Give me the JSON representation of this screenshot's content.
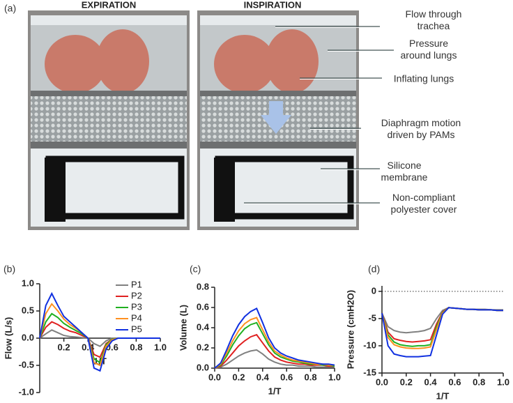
{
  "panel_a": {
    "panel_label": "(a)",
    "left_title": "EXPIRATION",
    "right_title": "INSPIRATION",
    "callouts": [
      {
        "lines": [
          "Flow through",
          "trachea"
        ]
      },
      {
        "lines": [
          "Pressure",
          "around lungs"
        ]
      },
      {
        "lines": [
          "Inflating lungs"
        ]
      },
      {
        "lines": [
          "Diaphragm motion",
          "driven by PAMs"
        ]
      },
      {
        "lines": [
          "Silicone",
          "membrane"
        ]
      },
      {
        "lines": [
          "Non-compliant",
          "polyester cover"
        ]
      }
    ]
  },
  "chart_data": [
    {
      "type": "line",
      "panel_label": "(b)",
      "y_label": "Flow (L/s)",
      "x_label": "1/T",
      "x": [
        0,
        0.05,
        0.1,
        0.15,
        0.2,
        0.25,
        0.3,
        0.35,
        0.4,
        0.45,
        0.5,
        0.55,
        0.6,
        0.65,
        0.7,
        0.75,
        0.8,
        0.85,
        0.9,
        0.95,
        1
      ],
      "xlim": [
        0,
        1
      ],
      "xticks": [
        0.2,
        0.4,
        0.6,
        0.8,
        {
          "value": 1,
          "label": "1.0"
        }
      ],
      "ylim": [
        -1,
        1
      ],
      "yticks": [
        {
          "value": -1,
          "label": "-1.0"
        },
        -0.5,
        {
          "value": 0,
          "label": "0.0"
        },
        0.5,
        {
          "value": 1,
          "label": "1.0"
        }
      ],
      "x_axis_cross": 0,
      "legend": "upper right",
      "series": [
        {
          "name": "P1",
          "color": "#808080",
          "values": [
            0,
            0.08,
            0.15,
            0.1,
            0.05,
            0.03,
            0.02,
            0.01,
            0,
            -0.1,
            -0.15,
            -0.05,
            0,
            0,
            0,
            0,
            0,
            0,
            0,
            0,
            0
          ]
        },
        {
          "name": "P2",
          "color": "#e02020",
          "values": [
            0,
            0.2,
            0.3,
            0.25,
            0.18,
            0.13,
            0.1,
            0.05,
            0,
            -0.3,
            -0.35,
            -0.1,
            -0.02,
            0,
            0,
            0,
            0,
            0,
            0,
            0,
            0
          ]
        },
        {
          "name": "P3",
          "color": "#20b020",
          "values": [
            0,
            0.3,
            0.45,
            0.38,
            0.27,
            0.2,
            0.14,
            0.08,
            0,
            -0.38,
            -0.45,
            -0.12,
            -0.02,
            0,
            0,
            0,
            0,
            0,
            0,
            0,
            0
          ]
        },
        {
          "name": "P4",
          "color": "#ff9020",
          "values": [
            0,
            0.45,
            0.63,
            0.5,
            0.35,
            0.25,
            0.18,
            0.1,
            0,
            -0.45,
            -0.5,
            -0.15,
            -0.03,
            0,
            0,
            0,
            0,
            0,
            0,
            0,
            0
          ]
        },
        {
          "name": "P5",
          "color": "#1030e0",
          "values": [
            0,
            0.6,
            0.82,
            0.6,
            0.4,
            0.3,
            0.2,
            0.1,
            0,
            -0.55,
            -0.6,
            -0.2,
            -0.05,
            0,
            0,
            0,
            0,
            0,
            0,
            0,
            0
          ]
        }
      ]
    },
    {
      "type": "line",
      "panel_label": "(c)",
      "y_label": "Volume (L)",
      "x_label": "1/T",
      "x": [
        0,
        0.05,
        0.1,
        0.15,
        0.2,
        0.25,
        0.3,
        0.35,
        0.4,
        0.45,
        0.5,
        0.55,
        0.6,
        0.65,
        0.7,
        0.75,
        0.8,
        0.85,
        0.9,
        0.95,
        1
      ],
      "xlim": [
        0,
        1
      ],
      "xticks": [
        {
          "value": 0,
          "label": "0.0"
        },
        0.2,
        0.4,
        0.6,
        0.8,
        {
          "value": 1,
          "label": "1.0"
        }
      ],
      "ylim": [
        0,
        0.8
      ],
      "yticks": [
        {
          "value": 0,
          "label": "0.0"
        },
        0.2,
        0.4,
        0.6,
        0.8
      ],
      "series": [
        {
          "color": "#808080",
          "values": [
            0,
            0.01,
            0.04,
            0.08,
            0.12,
            0.15,
            0.17,
            0.18,
            0.14,
            0.09,
            0.06,
            0.04,
            0.03,
            0.03,
            0.02,
            0.02,
            0.02,
            0.01,
            0.01,
            0.01,
            0.01
          ]
        },
        {
          "color": "#e02020",
          "values": [
            0,
            0.02,
            0.08,
            0.15,
            0.22,
            0.27,
            0.31,
            0.33,
            0.25,
            0.17,
            0.11,
            0.08,
            0.06,
            0.05,
            0.04,
            0.04,
            0.03,
            0.03,
            0.03,
            0.02,
            0.02
          ]
        },
        {
          "color": "#20b020",
          "values": [
            0,
            0.03,
            0.12,
            0.23,
            0.32,
            0.39,
            0.43,
            0.45,
            0.34,
            0.23,
            0.15,
            0.11,
            0.09,
            0.07,
            0.06,
            0.05,
            0.04,
            0.04,
            0.03,
            0.03,
            0.02
          ]
        },
        {
          "color": "#ff9020",
          "values": [
            0,
            0.04,
            0.15,
            0.27,
            0.37,
            0.44,
            0.48,
            0.5,
            0.38,
            0.26,
            0.17,
            0.13,
            0.1,
            0.08,
            0.07,
            0.06,
            0.05,
            0.04,
            0.04,
            0.03,
            0.03
          ]
        },
        {
          "color": "#1030e0",
          "values": [
            0,
            0.05,
            0.18,
            0.32,
            0.43,
            0.51,
            0.56,
            0.59,
            0.45,
            0.3,
            0.2,
            0.15,
            0.12,
            0.1,
            0.08,
            0.07,
            0.06,
            0.05,
            0.04,
            0.04,
            0.03
          ]
        }
      ]
    },
    {
      "type": "line",
      "panel_label": "(d)",
      "y_label": "Pressure (cmH2O)",
      "x_label": "1/T",
      "x": [
        0,
        0.05,
        0.1,
        0.15,
        0.2,
        0.25,
        0.3,
        0.35,
        0.4,
        0.45,
        0.5,
        0.55,
        0.6,
        0.65,
        0.7,
        0.75,
        0.8,
        0.85,
        0.9,
        0.95,
        1
      ],
      "xlim": [
        0,
        1
      ],
      "xticks": [
        {
          "value": 0,
          "label": "0.0"
        },
        0.2,
        0.4,
        0.6,
        0.8,
        {
          "value": 1,
          "label": "1.0"
        }
      ],
      "ylim": [
        -15,
        1
      ],
      "yticks": [
        -15,
        -10,
        -5,
        0
      ],
      "zero_line": true,
      "series": [
        {
          "color": "#808080",
          "values": [
            -4,
            -6.5,
            -7.2,
            -7.5,
            -7.6,
            -7.5,
            -7.4,
            -7.2,
            -6.8,
            -5,
            -3.5,
            -3,
            -3.1,
            -3.2,
            -3.3,
            -3.3,
            -3.3,
            -3.3,
            -3.4,
            -3.4,
            -3.4
          ]
        },
        {
          "color": "#e02020",
          "values": [
            -4,
            -7.5,
            -8.7,
            -9,
            -9.2,
            -9.3,
            -9.2,
            -9.1,
            -8.9,
            -6,
            -3.8,
            -3,
            -3.1,
            -3.2,
            -3.3,
            -3.3,
            -3.4,
            -3.4,
            -3.4,
            -3.5,
            -3.5
          ]
        },
        {
          "color": "#20b020",
          "values": [
            -4,
            -8,
            -9.3,
            -9.8,
            -10,
            -10.1,
            -10,
            -10,
            -9.8,
            -6.5,
            -3.9,
            -3,
            -3.1,
            -3.2,
            -3.3,
            -3.3,
            -3.4,
            -3.4,
            -3.4,
            -3.5,
            -3.5
          ]
        },
        {
          "color": "#ff9020",
          "values": [
            -4,
            -8.5,
            -9.8,
            -10.2,
            -10.4,
            -10.5,
            -10.5,
            -10.4,
            -10.2,
            -7,
            -4,
            -3,
            -3.1,
            -3.2,
            -3.3,
            -3.3,
            -3.4,
            -3.4,
            -3.4,
            -3.5,
            -3.5
          ]
        },
        {
          "color": "#1030e0",
          "values": [
            -4,
            -10,
            -11.5,
            -11.8,
            -12,
            -12,
            -12,
            -11.9,
            -11.8,
            -8,
            -4.2,
            -3,
            -3.1,
            -3.2,
            -3.3,
            -3.3,
            -3.4,
            -3.4,
            -3.4,
            -3.5,
            -3.5
          ]
        }
      ]
    }
  ]
}
